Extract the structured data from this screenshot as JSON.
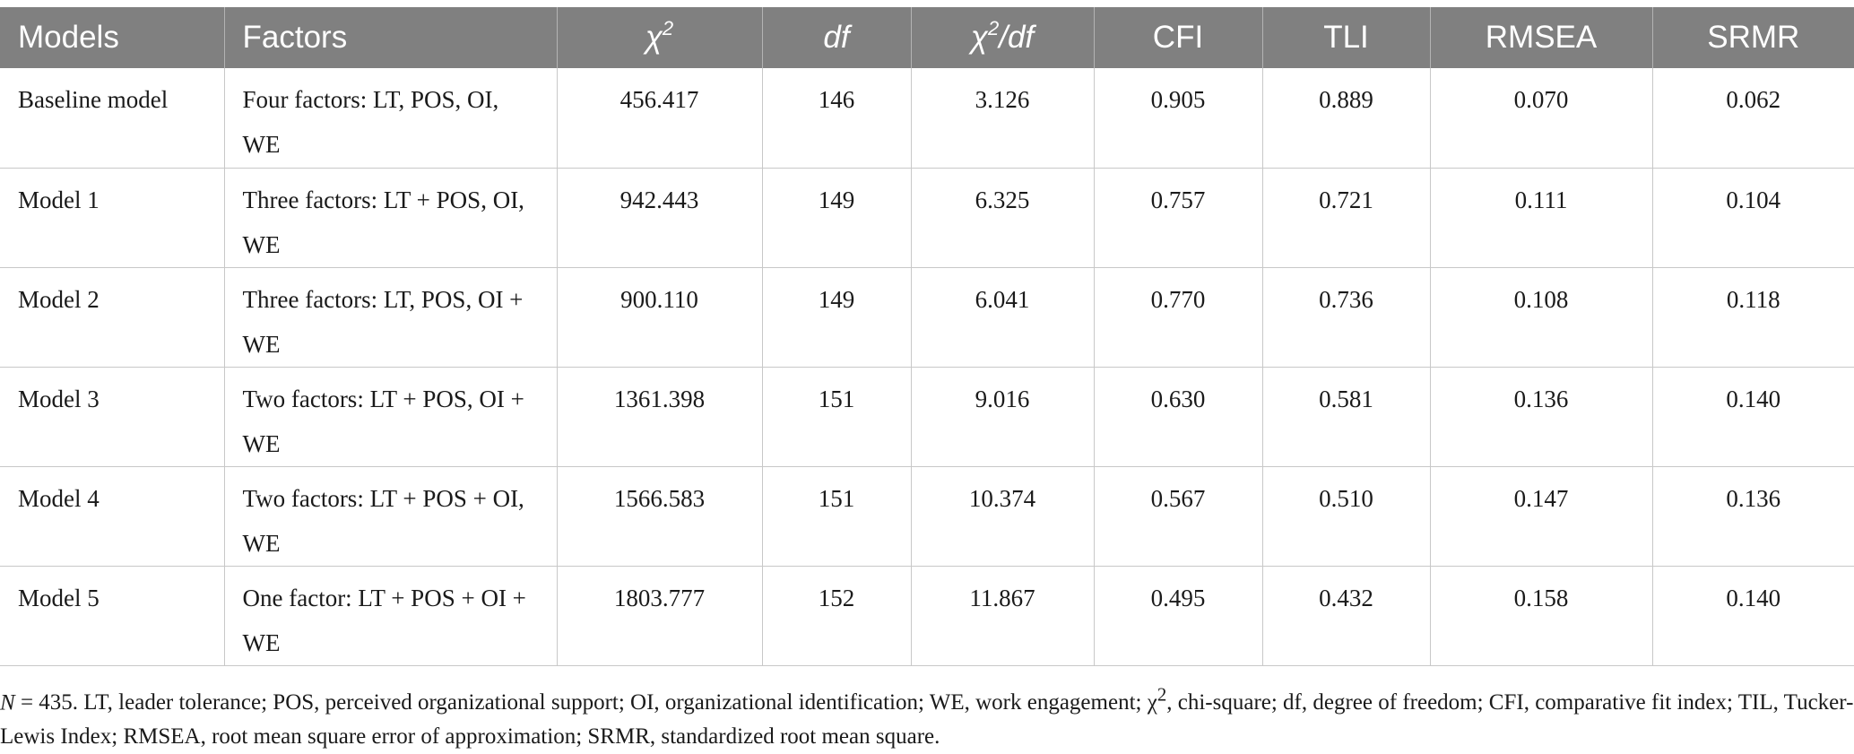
{
  "table": {
    "headers": [
      "Models",
      "Factors",
      "χ2",
      "df",
      "χ2/df",
      "CFI",
      "TLI",
      "RMSEA",
      "SRMR"
    ],
    "rows": [
      {
        "model": "Baseline model",
        "factors": "Four factors: LT, POS, OI, WE",
        "chi2": "456.417",
        "df": "146",
        "chi2df": "3.126",
        "cfi": "0.905",
        "tli": "0.889",
        "rmsea": "0.070",
        "srmr": "0.062"
      },
      {
        "model": "Model 1",
        "factors": "Three factors: LT + POS, OI, WE",
        "chi2": "942.443",
        "df": "149",
        "chi2df": "6.325",
        "cfi": "0.757",
        "tli": "0.721",
        "rmsea": "0.111",
        "srmr": "0.104"
      },
      {
        "model": "Model 2",
        "factors": "Three factors: LT, POS, OI + WE",
        "chi2": "900.110",
        "df": "149",
        "chi2df": "6.041",
        "cfi": "0.770",
        "tli": "0.736",
        "rmsea": "0.108",
        "srmr": "0.118"
      },
      {
        "model": "Model 3",
        "factors": "Two factors: LT + POS, OI + WE",
        "chi2": "1361.398",
        "df": "151",
        "chi2df": "9.016",
        "cfi": "0.630",
        "tli": "0.581",
        "rmsea": "0.136",
        "srmr": "0.140"
      },
      {
        "model": "Model 4",
        "factors": "Two factors: LT + POS + OI, WE",
        "chi2": "1566.583",
        "df": "151",
        "chi2df": "10.374",
        "cfi": "0.567",
        "tli": "0.510",
        "rmsea": "0.147",
        "srmr": "0.136"
      },
      {
        "model": "Model 5",
        "factors": "One factor: LT + POS + OI + WE",
        "chi2": "1803.777",
        "df": "152",
        "chi2df": "11.867",
        "cfi": "0.495",
        "tli": "0.432",
        "rmsea": "0.158",
        "srmr": "0.140"
      }
    ]
  },
  "note": {
    "n_label": "N",
    "text": " = 435. LT, leader tolerance; POS, perceived organizational support; OI, organizational identification; WE, work engagement; χ2, chi-square; df, degree of freedom; CFI, comparative fit index; TIL, Tucker-Lewis Index; RMSEA, root mean square error of approximation; SRMR, standardized root mean square."
  }
}
